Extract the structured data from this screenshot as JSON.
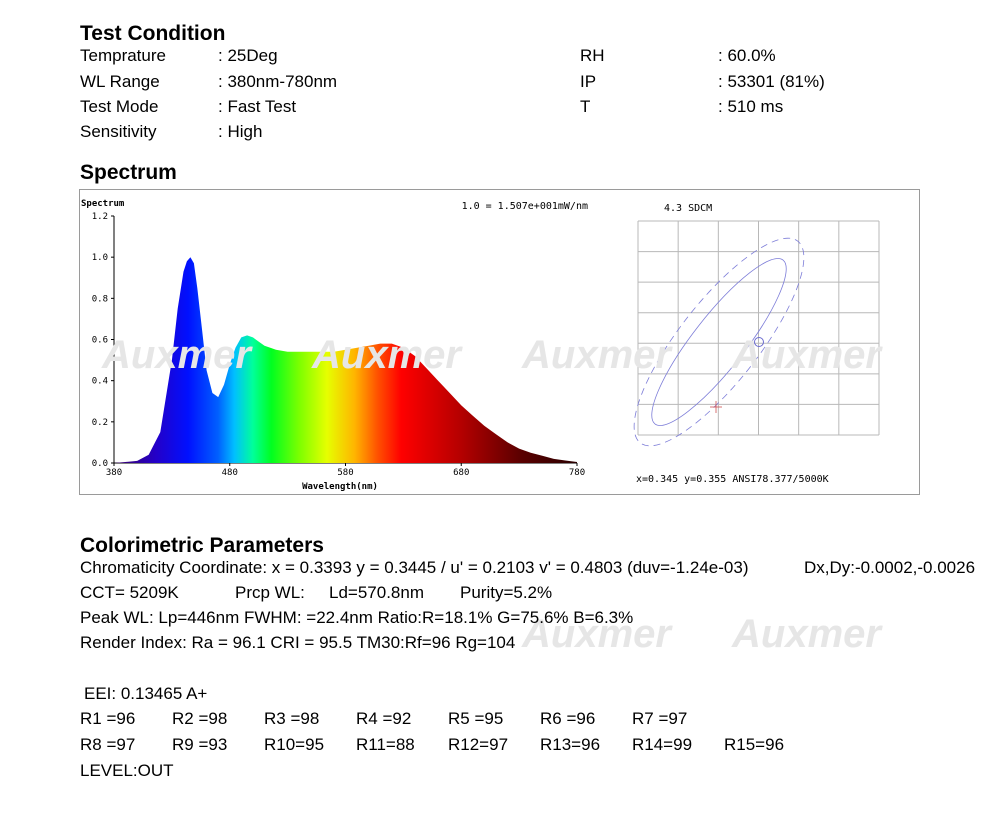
{
  "test_condition": {
    "title": "Test Condition",
    "left": [
      {
        "label": "Temprature",
        "value": ": 25Deg"
      },
      {
        "label": "WL Range",
        "value": ": 380nm-780nm"
      },
      {
        "label": "Test Mode",
        "value": ": Fast Test"
      },
      {
        "label": "Sensitivity",
        "value": ": High"
      }
    ],
    "right": [
      {
        "label": "RH",
        "value": ": 60.0%"
      },
      {
        "label": "IP",
        "value": ": 53301 (81%)"
      },
      {
        "label": "T",
        "value": ": 510 ms"
      }
    ]
  },
  "spectrum": {
    "title": "Spectrum",
    "watermark": "Auxmer"
  },
  "chart_data": [
    {
      "type": "area",
      "title": "Spectrum",
      "annotation": "1.0 = 1.507e+001mW/nm",
      "xlabel": "Wavelength(nm)",
      "ylabel": "",
      "xlim": [
        380,
        780
      ],
      "ylim": [
        0,
        1.2
      ],
      "x_ticks": [
        "380",
        "480",
        "580",
        "680",
        "780"
      ],
      "y_ticks": [
        "0.0",
        "0.2",
        "0.4",
        "0.6",
        "0.8",
        "1.0",
        "1.2"
      ],
      "gradient": "visible spectrum colors (violet to dark red)",
      "series": [
        {
          "x": [
            380,
            400,
            410,
            420,
            430,
            435,
            440,
            443,
            446,
            449,
            452,
            456,
            460,
            465,
            470,
            475,
            480,
            485,
            490,
            495,
            500,
            505,
            510,
            515,
            520,
            530,
            540,
            550,
            560,
            570,
            580,
            590,
            600,
            610,
            620,
            630,
            640,
            650,
            660,
            670,
            680,
            690,
            700,
            710,
            720,
            730,
            740,
            750,
            760,
            770,
            780
          ],
          "values": [
            0.0,
            0.01,
            0.04,
            0.15,
            0.5,
            0.75,
            0.93,
            0.98,
            1.0,
            0.97,
            0.85,
            0.65,
            0.45,
            0.34,
            0.32,
            0.38,
            0.48,
            0.56,
            0.61,
            0.62,
            0.61,
            0.59,
            0.57,
            0.56,
            0.55,
            0.54,
            0.54,
            0.54,
            0.54,
            0.54,
            0.55,
            0.56,
            0.57,
            0.58,
            0.58,
            0.56,
            0.52,
            0.46,
            0.4,
            0.34,
            0.28,
            0.23,
            0.18,
            0.14,
            0.1,
            0.07,
            0.05,
            0.035,
            0.02,
            0.012,
            0.005
          ]
        }
      ]
    },
    {
      "type": "scatter",
      "title": "4.3 SDCM",
      "caption": "x=0.345 y=0.355 ANSI78.377/5000K",
      "grid": true,
      "points": [
        {
          "name": "target",
          "x": 0.345,
          "y": 0.355
        },
        {
          "name": "measured",
          "x": 0.3393,
          "y": 0.3445
        }
      ]
    }
  ],
  "colorimetric": {
    "title": "Colorimetric Parameters",
    "chromaticity": "Chromaticity Coordinate: x = 0.3393 y = 0.3445 / u' = 0.2103 v' = 0.4803 (duv=-1.24e-03)",
    "dxdy": "Dx,Dy:-0.0002,-0.0026",
    "cct": "CCT=  5209K",
    "prcp": "Prcp WL:",
    "ld": "Ld=570.8nm",
    "purity": "Purity=5.2%",
    "peak": "Peak WL:  Lp=446nm  FWHM:   =22.4nm  Ratio:R=18.1% G=75.6% B=6.3%",
    "render": "Render Index: Ra = 96.1 CRI = 95.5 TM30:Rf=96 Rg=104",
    "eei": "EEI: 0.13465 A+",
    "r_row1": [
      "R1 =96",
      "R2 =98",
      "R3 =98",
      "R4 =92",
      "R5 =95",
      "R6 =96",
      "R7 =97"
    ],
    "r_row2": [
      "R8 =97",
      "R9 =93",
      "R10=95",
      "R11=88",
      "R12=97",
      "R13=96",
      "R14=99",
      "R15=96"
    ],
    "level": "LEVEL:OUT",
    "watermark": "Auxmer"
  }
}
